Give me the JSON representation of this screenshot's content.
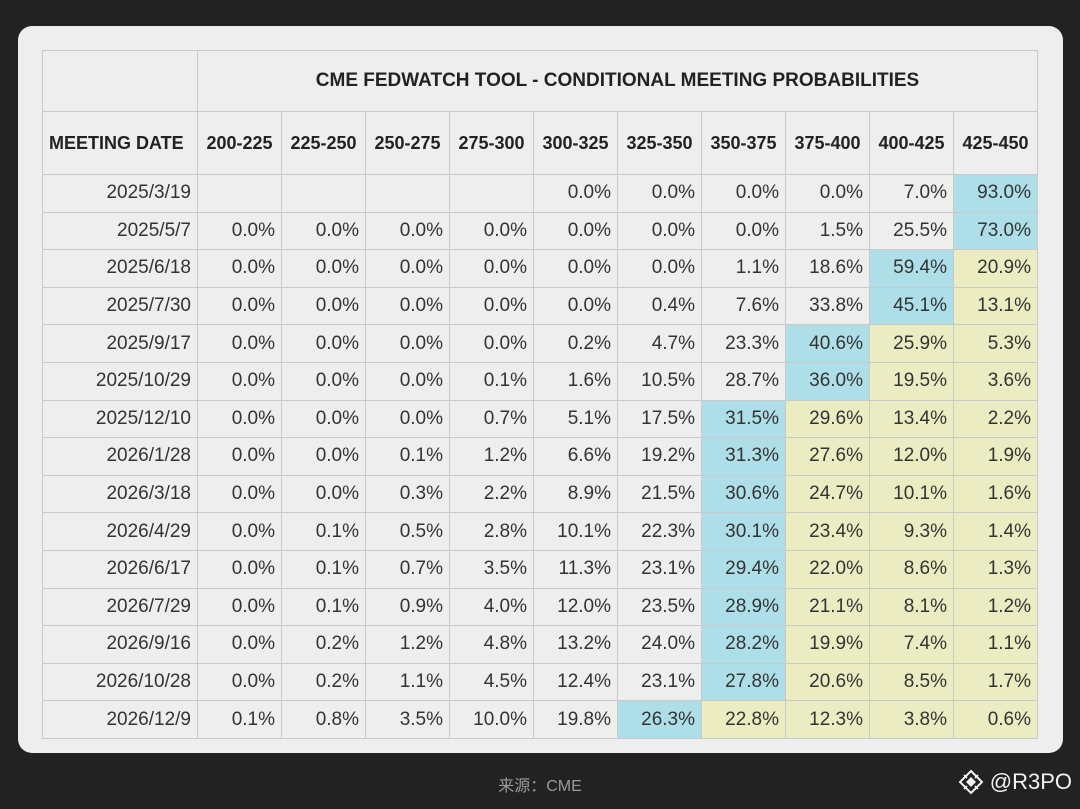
{
  "table": {
    "title": "CME FEDWATCH TOOL - CONDITIONAL MEETING PROBABILITIES",
    "date_header": "MEETING DATE",
    "columns": [
      "200-225",
      "225-250",
      "250-275",
      "275-300",
      "300-325",
      "325-350",
      "350-375",
      "375-400",
      "400-425",
      "425-450"
    ],
    "rows": [
      {
        "date": "2025/3/19",
        "values": [
          "",
          "",
          "",
          "",
          "0.0%",
          "0.0%",
          "0.0%",
          "0.0%",
          "7.0%",
          "93.0%"
        ],
        "hl": [
          "",
          "",
          "",
          "",
          "",
          "",
          "",
          "",
          "",
          "b"
        ]
      },
      {
        "date": "2025/5/7",
        "values": [
          "0.0%",
          "0.0%",
          "0.0%",
          "0.0%",
          "0.0%",
          "0.0%",
          "0.0%",
          "1.5%",
          "25.5%",
          "73.0%"
        ],
        "hl": [
          "",
          "",
          "",
          "",
          "",
          "",
          "",
          "",
          "",
          "b"
        ]
      },
      {
        "date": "2025/6/18",
        "values": [
          "0.0%",
          "0.0%",
          "0.0%",
          "0.0%",
          "0.0%",
          "0.0%",
          "1.1%",
          "18.6%",
          "59.4%",
          "20.9%"
        ],
        "hl": [
          "",
          "",
          "",
          "",
          "",
          "",
          "",
          "",
          "b",
          "y"
        ]
      },
      {
        "date": "2025/7/30",
        "values": [
          "0.0%",
          "0.0%",
          "0.0%",
          "0.0%",
          "0.0%",
          "0.4%",
          "7.6%",
          "33.8%",
          "45.1%",
          "13.1%"
        ],
        "hl": [
          "",
          "",
          "",
          "",
          "",
          "",
          "",
          "",
          "b",
          "y"
        ]
      },
      {
        "date": "2025/9/17",
        "values": [
          "0.0%",
          "0.0%",
          "0.0%",
          "0.0%",
          "0.2%",
          "4.7%",
          "23.3%",
          "40.6%",
          "25.9%",
          "5.3%"
        ],
        "hl": [
          "",
          "",
          "",
          "",
          "",
          "",
          "",
          "b",
          "y",
          "y"
        ]
      },
      {
        "date": "2025/10/29",
        "values": [
          "0.0%",
          "0.0%",
          "0.0%",
          "0.1%",
          "1.6%",
          "10.5%",
          "28.7%",
          "36.0%",
          "19.5%",
          "3.6%"
        ],
        "hl": [
          "",
          "",
          "",
          "",
          "",
          "",
          "",
          "b",
          "y",
          "y"
        ]
      },
      {
        "date": "2025/12/10",
        "values": [
          "0.0%",
          "0.0%",
          "0.0%",
          "0.7%",
          "5.1%",
          "17.5%",
          "31.5%",
          "29.6%",
          "13.4%",
          "2.2%"
        ],
        "hl": [
          "",
          "",
          "",
          "",
          "",
          "",
          "b",
          "y",
          "y",
          "y"
        ]
      },
      {
        "date": "2026/1/28",
        "values": [
          "0.0%",
          "0.0%",
          "0.1%",
          "1.2%",
          "6.6%",
          "19.2%",
          "31.3%",
          "27.6%",
          "12.0%",
          "1.9%"
        ],
        "hl": [
          "",
          "",
          "",
          "",
          "",
          "",
          "b",
          "y",
          "y",
          "y"
        ]
      },
      {
        "date": "2026/3/18",
        "values": [
          "0.0%",
          "0.0%",
          "0.3%",
          "2.2%",
          "8.9%",
          "21.5%",
          "30.6%",
          "24.7%",
          "10.1%",
          "1.6%"
        ],
        "hl": [
          "",
          "",
          "",
          "",
          "",
          "",
          "b",
          "y",
          "y",
          "y"
        ]
      },
      {
        "date": "2026/4/29",
        "values": [
          "0.0%",
          "0.1%",
          "0.5%",
          "2.8%",
          "10.1%",
          "22.3%",
          "30.1%",
          "23.4%",
          "9.3%",
          "1.4%"
        ],
        "hl": [
          "",
          "",
          "",
          "",
          "",
          "",
          "b",
          "y",
          "y",
          "y"
        ]
      },
      {
        "date": "2026/6/17",
        "values": [
          "0.0%",
          "0.1%",
          "0.7%",
          "3.5%",
          "11.3%",
          "23.1%",
          "29.4%",
          "22.0%",
          "8.6%",
          "1.3%"
        ],
        "hl": [
          "",
          "",
          "",
          "",
          "",
          "",
          "b",
          "y",
          "y",
          "y"
        ]
      },
      {
        "date": "2026/7/29",
        "values": [
          "0.0%",
          "0.1%",
          "0.9%",
          "4.0%",
          "12.0%",
          "23.5%",
          "28.9%",
          "21.1%",
          "8.1%",
          "1.2%"
        ],
        "hl": [
          "",
          "",
          "",
          "",
          "",
          "",
          "b",
          "y",
          "y",
          "y"
        ]
      },
      {
        "date": "2026/9/16",
        "values": [
          "0.0%",
          "0.2%",
          "1.2%",
          "4.8%",
          "13.2%",
          "24.0%",
          "28.2%",
          "19.9%",
          "7.4%",
          "1.1%"
        ],
        "hl": [
          "",
          "",
          "",
          "",
          "",
          "",
          "b",
          "y",
          "y",
          "y"
        ]
      },
      {
        "date": "2026/10/28",
        "values": [
          "0.0%",
          "0.2%",
          "1.1%",
          "4.5%",
          "12.4%",
          "23.1%",
          "27.8%",
          "20.6%",
          "8.5%",
          "1.7%"
        ],
        "hl": [
          "",
          "",
          "",
          "",
          "",
          "",
          "b",
          "y",
          "y",
          "y"
        ]
      },
      {
        "date": "2026/12/9",
        "values": [
          "0.1%",
          "0.8%",
          "3.5%",
          "10.0%",
          "19.8%",
          "26.3%",
          "22.8%",
          "12.3%",
          "3.8%",
          "0.6%"
        ],
        "hl": [
          "",
          "",
          "",
          "",
          "",
          "b",
          "y",
          "y",
          "y",
          "y"
        ]
      }
    ],
    "colors": {
      "highlight_blue": "#aedfe8",
      "highlight_yellow": "#ececc2"
    }
  },
  "footer": {
    "source": "来源：CME",
    "watermark": "@R3PO",
    "watermark_icon": "r3po-logo-icon"
  }
}
